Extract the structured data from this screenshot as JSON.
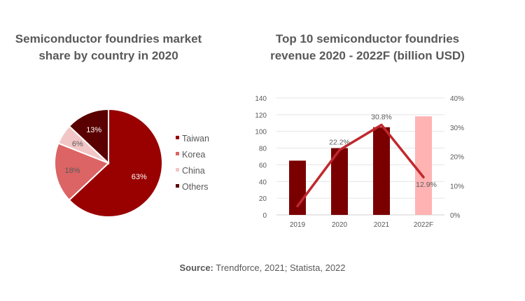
{
  "chart_data": [
    {
      "type": "pie",
      "title": "Semiconductor foundries market share by country in 2020",
      "slices": [
        {
          "label": "Taiwan",
          "value": 63,
          "data_label": "63%",
          "color": "#990000"
        },
        {
          "label": "Korea",
          "value": 18,
          "data_label": "18%",
          "color": "#dc6464"
        },
        {
          "label": "China",
          "value": 6,
          "data_label": "6%",
          "color": "#f2c6c6"
        },
        {
          "label": "Others",
          "value": 13,
          "data_label": "13%",
          "color": "#5a0000"
        }
      ],
      "legend": "right"
    },
    {
      "type": "bar+line",
      "title": "Top 10 semiconductor foundries revenue 2020 - 2022F (billion USD)",
      "categories": [
        "2019",
        "2020",
        "2021",
        "2022F"
      ],
      "bars": {
        "values": [
          65,
          80,
          105,
          118
        ],
        "colors": [
          "#7a0000",
          "#7a0000",
          "#7a0000",
          "#ffb3b3"
        ]
      },
      "line": {
        "values": [
          3,
          22.2,
          30.8,
          12.9
        ],
        "data_labels": [
          "",
          "22.2%",
          "30.8%",
          "12.9%"
        ],
        "color": "#c0282d"
      },
      "y_left": {
        "ylim": [
          0,
          140
        ],
        "ticks": [
          "0",
          "20",
          "40",
          "60",
          "80",
          "100",
          "120",
          "140"
        ]
      },
      "y_right": {
        "ylim": [
          0,
          40
        ],
        "ticks": [
          "0%",
          "10%",
          "20%",
          "30%",
          "40%"
        ]
      },
      "grid": true
    }
  ],
  "source": {
    "label": "Source:",
    "text": " Trendforce, 2021; Statista, 2022"
  }
}
